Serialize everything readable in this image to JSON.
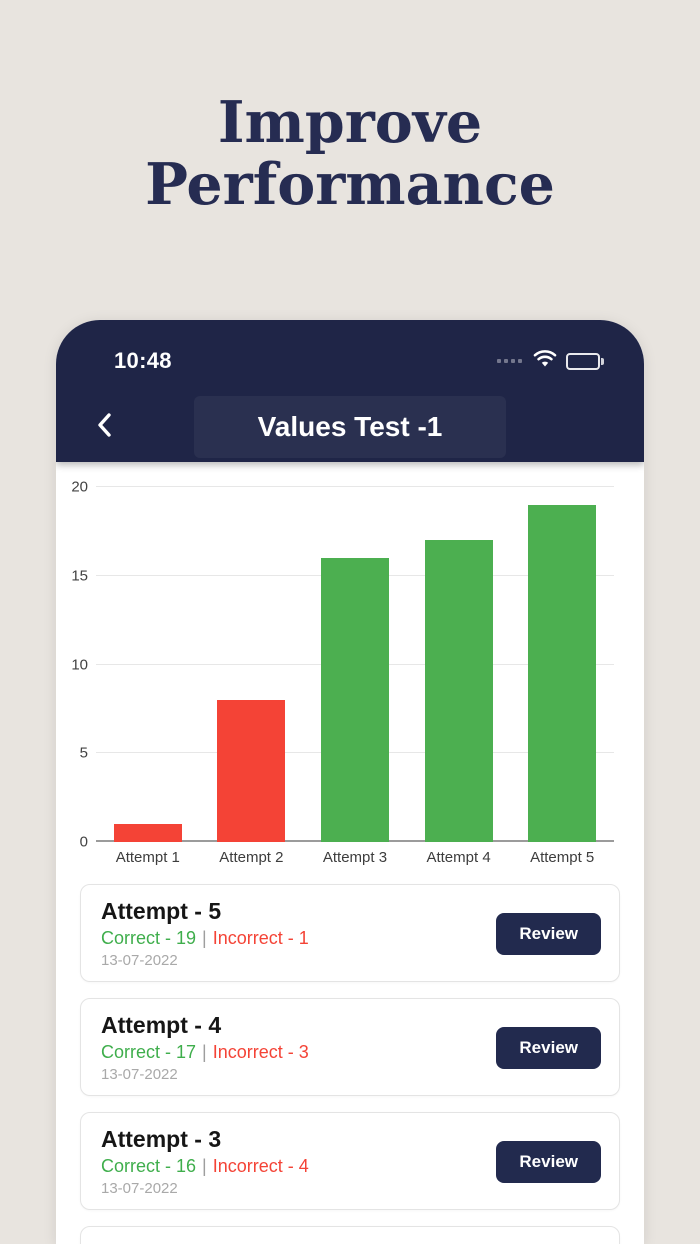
{
  "hero": {
    "title_line1": "Improve",
    "title_line2": "Performance"
  },
  "phone": {
    "status_bar": {
      "time": "10:48",
      "icons": [
        "cellular-signal-icon",
        "wifi-icon",
        "battery-icon"
      ]
    },
    "nav": {
      "back_icon": "chevron-left-icon",
      "title": "Values Test -1"
    }
  },
  "chart_data": {
    "type": "bar",
    "categories": [
      "Attempt 1",
      "Attempt 2",
      "Attempt 3",
      "Attempt 4",
      "Attempt 5"
    ],
    "values": [
      1,
      8,
      16,
      17,
      19
    ],
    "bar_colors": [
      "#f44336",
      "#f44336",
      "#4caf50",
      "#4caf50",
      "#4caf50"
    ],
    "title": "",
    "xlabel": "",
    "ylabel": "",
    "ylim": [
      0,
      20
    ],
    "yticks": [
      0,
      5,
      10,
      15,
      20
    ],
    "grid": true,
    "legend": false
  },
  "attempts": [
    {
      "title": "Attempt - 5",
      "correct": "Correct - 19",
      "separator": "|",
      "incorrect": "Incorrect - 1",
      "date": "13-07-2022",
      "review_label": "Review"
    },
    {
      "title": "Attempt - 4",
      "correct": "Correct - 17",
      "separator": "|",
      "incorrect": "Incorrect - 3",
      "date": "13-07-2022",
      "review_label": "Review"
    },
    {
      "title": "Attempt - 3",
      "correct": "Correct - 16",
      "separator": "|",
      "incorrect": "Incorrect - 4",
      "date": "13-07-2022",
      "review_label": "Review"
    }
  ],
  "colors": {
    "background": "#e8e4df",
    "navy": "#1f2547",
    "bar_red": "#f44336",
    "bar_green": "#4caf50",
    "correct_text": "#3fae4c",
    "incorrect_text": "#f44336"
  }
}
